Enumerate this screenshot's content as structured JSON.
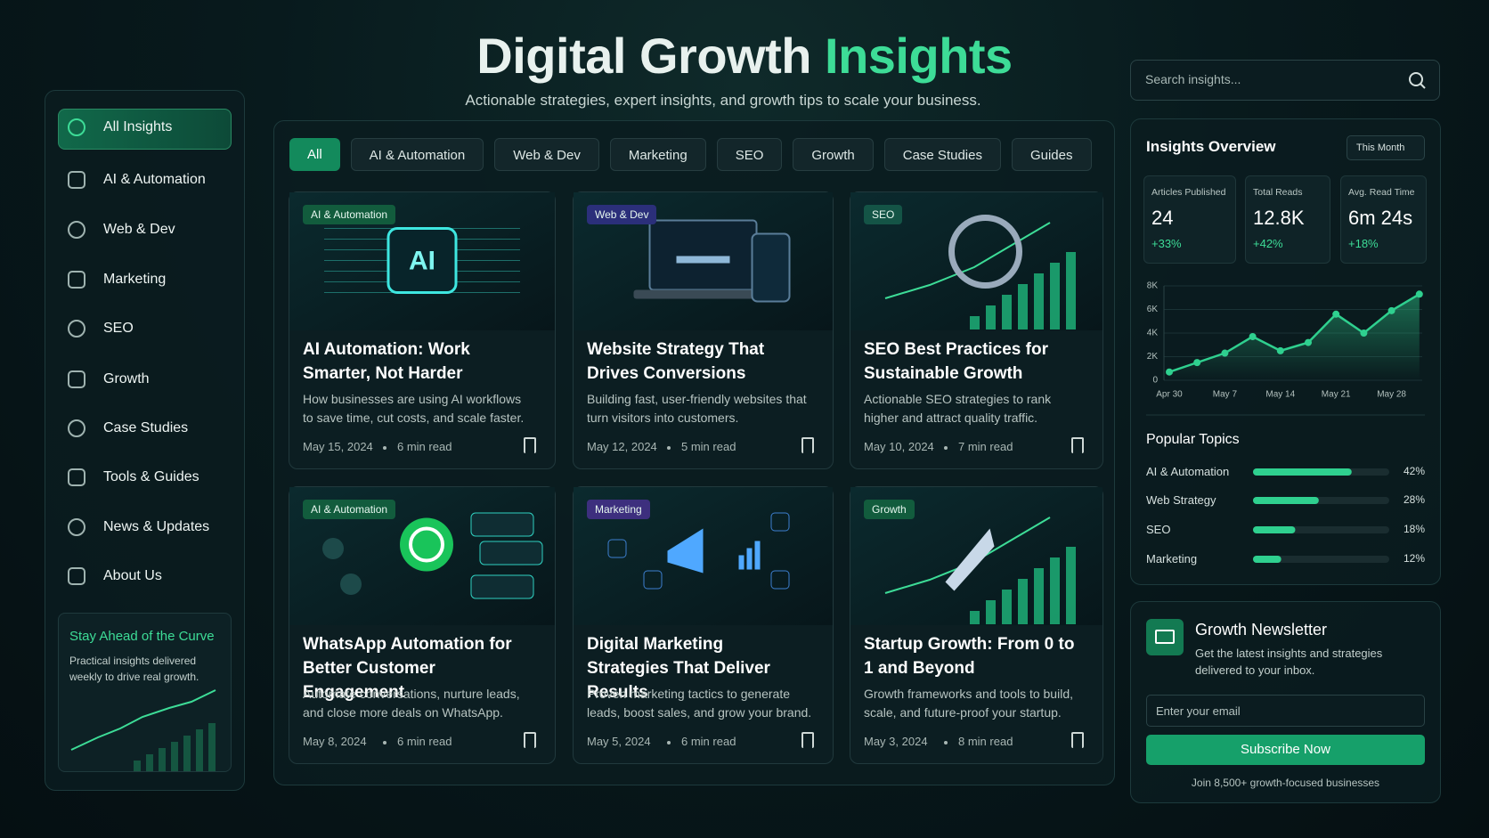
{
  "header": {
    "title": "Digital Growth",
    "title_accent": "Insights",
    "subtitle": "Actionable strategies, expert insights, and growth tips to scale your business."
  },
  "search": {
    "placeholder": "Search insights..."
  },
  "sidebar": {
    "items": [
      "All Insights",
      "AI & Automation",
      "Web & Dev",
      "Marketing",
      "SEO",
      "Growth",
      "Case Studies",
      "Tools & Guides",
      "News & Updates",
      "About Us"
    ],
    "promo": {
      "title": "Stay Ahead of the Curve",
      "text": "Practical insights delivered weekly to drive real growth."
    }
  },
  "filters": [
    "All",
    "AI & Automation",
    "Web & Dev",
    "Marketing",
    "SEO",
    "Growth",
    "Case Studies",
    "Guides"
  ],
  "cards": [
    {
      "tag": "AI & Automation",
      "tag_color": "#125c3d",
      "image_text": "AI",
      "title": "AI Automation: Work Smarter, Not Harder",
      "description": "How businesses are using AI workflows to save time, cut costs, and scale faster.",
      "date": "May 15, 2024",
      "read_time": "6 min read"
    },
    {
      "tag": "Web & Dev",
      "tag_color": "#2b2f7a",
      "title": "Website Strategy That Drives Conversions",
      "description": "Building fast, user-friendly websites that turn visitors into customers.",
      "date": "May 12, 2024",
      "read_time": "5 min read"
    },
    {
      "tag": "SEO",
      "tag_color": "#145446",
      "title": "SEO Best Practices for Sustainable Growth",
      "description": "Actionable SEO strategies to rank higher and attract quality traffic.",
      "date": "May 10, 2024",
      "read_time": "7 min read"
    },
    {
      "tag": "AI & Automation",
      "tag_color": "#125c3d",
      "title": "WhatsApp Automation for Better Customer Engagement",
      "description": "Automate conversations, nurture leads, and close more deals on WhatsApp.",
      "date": "May 8, 2024",
      "read_time": "6 min read"
    },
    {
      "tag": "Marketing",
      "tag_color": "#3d2f7e",
      "title": "Digital Marketing Strategies That Deliver Results",
      "description": "Proven marketing tactics to generate leads, boost sales, and grow your brand.",
      "date": "May 5, 2024",
      "read_time": "6 min read"
    },
    {
      "tag": "Growth",
      "tag_color": "#125c3d",
      "title": "Startup Growth: From 0 to 1 and Beyond",
      "description": "Growth frameworks and tools to build, scale, and future-proof your startup.",
      "date": "May 3, 2024",
      "read_time": "8 min read"
    }
  ],
  "overview": {
    "title": "Insights Overview",
    "period": "This Month",
    "stats": [
      {
        "label": "Articles Published",
        "value": "24",
        "change": "+33%"
      },
      {
        "label": "Total Reads",
        "value": "12.8K",
        "change": "+42%"
      },
      {
        "label": "Avg. Read Time",
        "value": "6m 24s",
        "change": "+18%"
      }
    ],
    "chart_data": {
      "type": "line",
      "categories": [
        "Apr 30",
        null,
        "May 7",
        null,
        "May 14",
        null,
        "May 21",
        null,
        "May 28",
        null
      ],
      "values": [
        700,
        1500,
        2300,
        3700,
        2500,
        3200,
        5600,
        4000,
        5900,
        7300
      ],
      "color": "#2fd08f",
      "ylim": [
        0,
        8000
      ],
      "yticks": [
        0,
        {
          "value": 2000,
          "label": "2K"
        },
        {
          "value": 4000,
          "label": "4K"
        },
        {
          "value": 6000,
          "label": "6K"
        },
        {
          "value": 8000,
          "label": "8K"
        }
      ]
    }
  },
  "topics": {
    "title": "Popular Topics",
    "chart_data": {
      "type": "bar",
      "categories": [
        "AI & Automation",
        "Web Strategy",
        "SEO",
        "Marketing"
      ],
      "values": [
        42,
        28,
        18,
        12
      ],
      "value_labels": [
        "42%",
        "28%",
        "18%",
        "12%"
      ],
      "xlim": [
        0,
        58
      ],
      "color": "#2fd08f"
    }
  },
  "newsletter": {
    "title": "Growth Newsletter",
    "text": "Get the latest insights and strategies delivered to your inbox.",
    "input_placeholder": "Enter your email",
    "button": "Subscribe Now",
    "footnote": "Join 8,500+ growth-focused businesses"
  }
}
